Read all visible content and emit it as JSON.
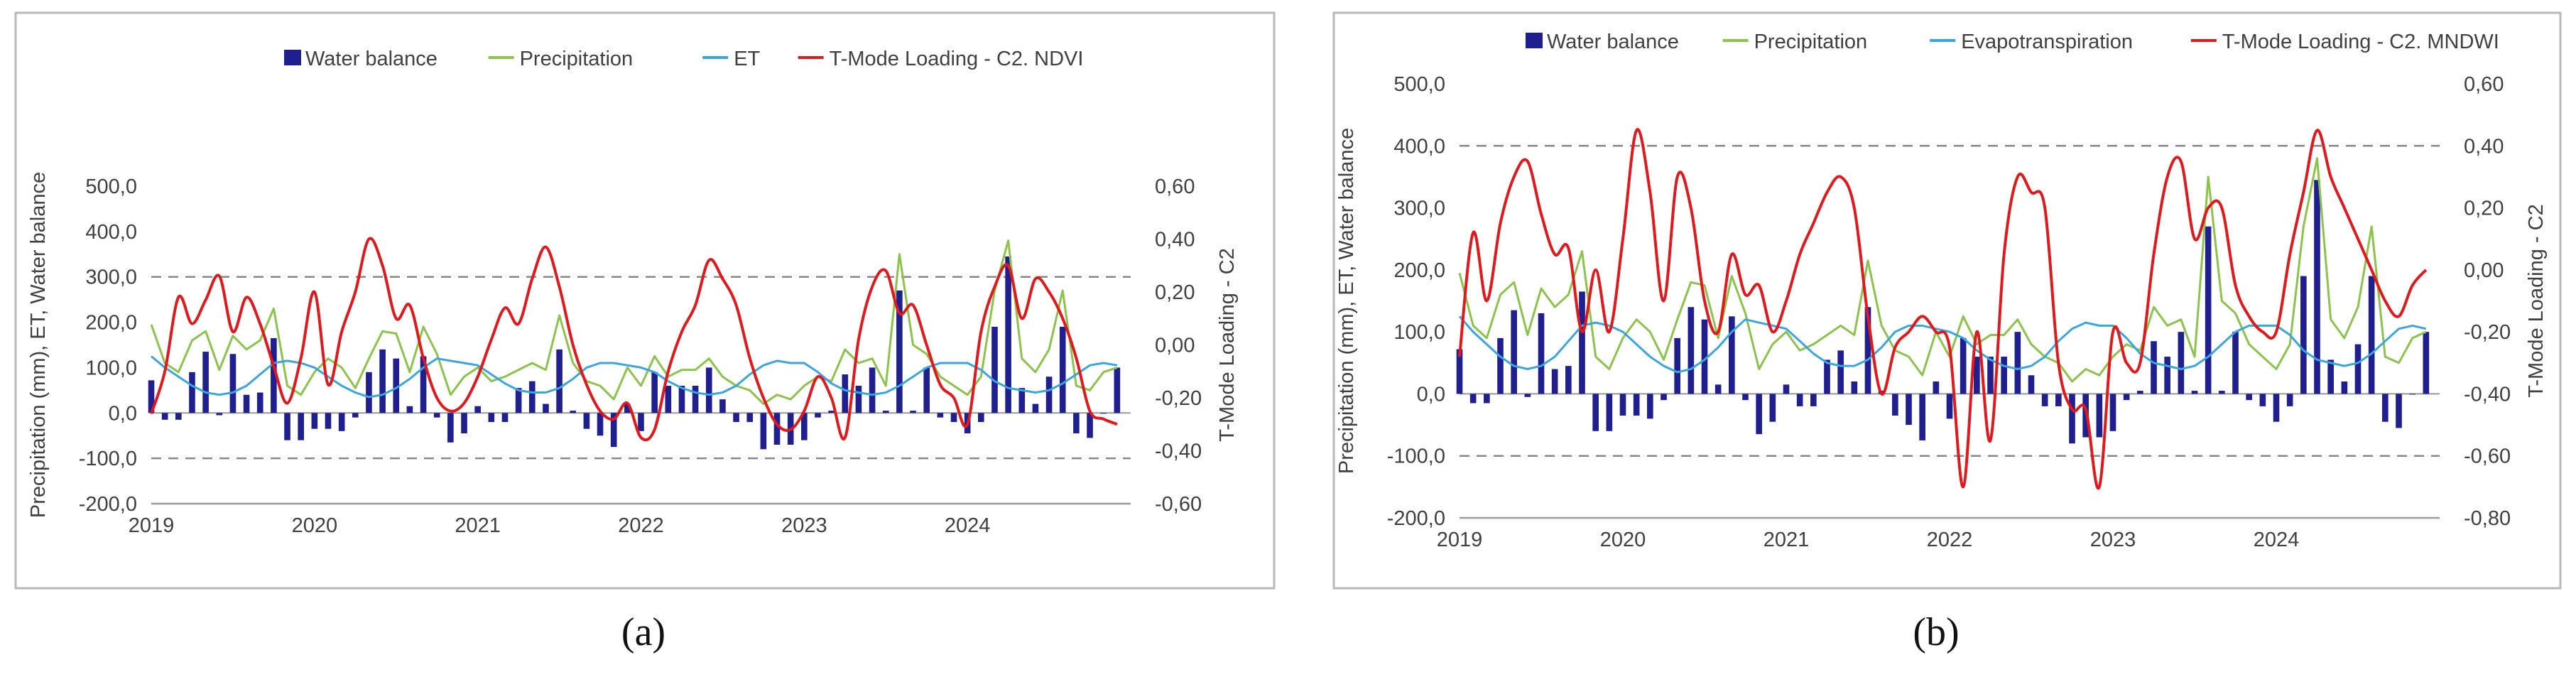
{
  "figure": {
    "caption_a": "(a)",
    "caption_b": "(b)"
  },
  "colors": {
    "water_balance": "#1f1f8f",
    "precipitation": "#8cc34a",
    "et": "#3aa6e0",
    "tmode": "#e0191d",
    "frame": "#b9b9b9",
    "axis_text": "#404040",
    "gridline": "#888888"
  },
  "chart_data": [
    {
      "type": "bar",
      "panel": "a",
      "legend": [
        "Water balance",
        "Precipitation",
        "ET",
        "T-Mode Loading - C2. NDVI"
      ],
      "ylabel": "Precipitation (mm), ET, Water balance",
      "y2label": "T-Mode Loading - C2",
      "ylim": [
        -200,
        500
      ],
      "y2lim": [
        -0.6,
        0.6
      ],
      "y_ticks": [
        "500,0",
        "400,0",
        "300,0",
        "200,0",
        "100,0",
        "0,0",
        "-100,0",
        "-200,0"
      ],
      "y2_ticks": [
        "0,60",
        "0,40",
        "0,20",
        "0,00",
        "-0,20",
        "-0,40",
        "-0,60"
      ],
      "xlim": [
        2019,
        2025
      ],
      "x_ticks": [
        "2019",
        "2020",
        "2021",
        "2022",
        "2023",
        "2024"
      ],
      "grid_y": [
        300,
        -100
      ],
      "x_months": [
        2019.0,
        2019.0833,
        2019.1667,
        2019.25,
        2019.3333,
        2019.4167,
        2019.5,
        2019.5833,
        2019.6667,
        2019.75,
        2019.8333,
        2019.9167,
        2020.0,
        2020.0833,
        2020.1667,
        2020.25,
        2020.3333,
        2020.4167,
        2020.5,
        2020.5833,
        2020.6667,
        2020.75,
        2020.8333,
        2020.9167,
        2021.0,
        2021.0833,
        2021.1667,
        2021.25,
        2021.3333,
        2021.4167,
        2021.5,
        2021.5833,
        2021.6667,
        2021.75,
        2021.8333,
        2021.9167,
        2022.0,
        2022.0833,
        2022.1667,
        2022.25,
        2022.3333,
        2022.4167,
        2022.5,
        2022.5833,
        2022.6667,
        2022.75,
        2022.8333,
        2022.9167,
        2023.0,
        2023.0833,
        2023.1667,
        2023.25,
        2023.3333,
        2023.4167,
        2023.5,
        2023.5833,
        2023.6667,
        2023.75,
        2023.8333,
        2023.9167,
        2024.0,
        2024.0833,
        2024.1667,
        2024.25,
        2024.3333,
        2024.4167,
        2024.5,
        2024.5833,
        2024.6667,
        2024.75,
        2024.8333,
        2024.9167
      ],
      "series": [
        {
          "name": "Water balance",
          "kind": "bar",
          "values": [
            72,
            -15,
            -15,
            90,
            135,
            -5,
            130,
            40,
            45,
            165,
            -60,
            -60,
            -35,
            -35,
            -40,
            -10,
            90,
            140,
            120,
            15,
            125,
            -10,
            -65,
            -45,
            15,
            -20,
            -20,
            55,
            70,
            20,
            140,
            5,
            -35,
            -50,
            -75,
            20,
            -40,
            90,
            60,
            60,
            60,
            100,
            30,
            -20,
            -20,
            -80,
            -70,
            -70,
            -60,
            -10,
            5,
            85,
            60,
            100,
            5,
            270,
            5,
            100,
            -10,
            -20,
            -45,
            -20,
            190,
            345,
            55,
            20,
            80,
            190,
            -45,
            -55,
            0,
            100
          ]
        },
        {
          "name": "Precipitation",
          "kind": "line",
          "values": [
            195,
            110,
            90,
            160,
            180,
            95,
            170,
            140,
            160,
            230,
            60,
            40,
            90,
            120,
            100,
            55,
            120,
            180,
            175,
            90,
            190,
            130,
            40,
            80,
            100,
            70,
            80,
            95,
            110,
            95,
            215,
            110,
            70,
            60,
            30,
            100,
            60,
            125,
            80,
            95,
            95,
            120,
            80,
            60,
            50,
            20,
            40,
            30,
            60,
            80,
            70,
            140,
            110,
            120,
            60,
            350,
            150,
            130,
            80,
            60,
            40,
            80,
            270,
            380,
            120,
            90,
            140,
            270,
            60,
            50,
            90,
            100
          ]
        },
        {
          "name": "ET",
          "kind": "line",
          "values": [
            125,
            100,
            80,
            60,
            45,
            40,
            45,
            60,
            85,
            110,
            115,
            110,
            100,
            80,
            60,
            45,
            35,
            40,
            55,
            75,
            100,
            120,
            115,
            110,
            105,
            85,
            65,
            50,
            45,
            45,
            55,
            75,
            100,
            110,
            110,
            105,
            100,
            90,
            70,
            55,
            45,
            40,
            45,
            60,
            85,
            105,
            115,
            110,
            110,
            90,
            65,
            50,
            45,
            40,
            45,
            60,
            80,
            100,
            110,
            110,
            110,
            95,
            70,
            55,
            50,
            45,
            50,
            65,
            85,
            105,
            110,
            105
          ]
        },
        {
          "name": "T-Mode Loading - C2. NDVI",
          "kind": "line",
          "axis": "right",
          "values": [
            -0.26,
            -0.1,
            0.18,
            0.08,
            0.17,
            0.26,
            0.05,
            0.18,
            0.08,
            -0.08,
            -0.22,
            -0.05,
            0.2,
            -0.15,
            0.05,
            0.2,
            0.4,
            0.3,
            0.1,
            0.15,
            -0.05,
            -0.2,
            -0.25,
            -0.22,
            -0.12,
            0.02,
            0.14,
            0.08,
            0.25,
            0.37,
            0.22,
            0.0,
            -0.15,
            -0.25,
            -0.28,
            -0.22,
            -0.35,
            -0.32,
            -0.1,
            0.05,
            0.15,
            0.32,
            0.25,
            0.15,
            -0.05,
            -0.2,
            -0.3,
            -0.32,
            -0.25,
            -0.12,
            -0.2,
            -0.35,
            0.02,
            0.22,
            0.28,
            0.12,
            0.15,
            0.0,
            -0.15,
            -0.2,
            -0.3,
            0.05,
            0.22,
            0.3,
            0.1,
            0.25,
            0.2,
            0.1,
            -0.05,
            -0.25,
            -0.28,
            -0.3
          ]
        }
      ]
    },
    {
      "type": "bar",
      "panel": "b",
      "legend": [
        "Water balance",
        "Precipitation",
        "Evapotranspiration",
        "T-Mode Loading - C2. MNDWI"
      ],
      "ylabel": "Precipitation (mm), ET, Water balance",
      "y2label": "T-Mode Loading - C2",
      "ylim": [
        -200,
        500
      ],
      "y2lim": [
        -0.8,
        0.6
      ],
      "y_ticks": [
        "500,0",
        "400,0",
        "300,0",
        "200,0",
        "100,0",
        "0,0",
        "-100,0",
        "-200,0"
      ],
      "y2_ticks": [
        "0,60",
        "0,40",
        "0,20",
        "0,00",
        "-0,20",
        "-0,40",
        "-0,60",
        "-0,80"
      ],
      "xlim": [
        2019,
        2025
      ],
      "x_ticks": [
        "2019",
        "2020",
        "2021",
        "2022",
        "2023",
        "2024"
      ],
      "grid_y": [
        400,
        -100
      ],
      "x_months": [
        2019.0,
        2019.0833,
        2019.1667,
        2019.25,
        2019.3333,
        2019.4167,
        2019.5,
        2019.5833,
        2019.6667,
        2019.75,
        2019.8333,
        2019.9167,
        2020.0,
        2020.0833,
        2020.1667,
        2020.25,
        2020.3333,
        2020.4167,
        2020.5,
        2020.5833,
        2020.6667,
        2020.75,
        2020.8333,
        2020.9167,
        2021.0,
        2021.0833,
        2021.1667,
        2021.25,
        2021.3333,
        2021.4167,
        2021.5,
        2021.5833,
        2021.6667,
        2021.75,
        2021.8333,
        2021.9167,
        2022.0,
        2022.0833,
        2022.1667,
        2022.25,
        2022.3333,
        2022.4167,
        2022.5,
        2022.5833,
        2022.6667,
        2022.75,
        2022.8333,
        2022.9167,
        2023.0,
        2023.0833,
        2023.1667,
        2023.25,
        2023.3333,
        2023.4167,
        2023.5,
        2023.5833,
        2023.6667,
        2023.75,
        2023.8333,
        2023.9167,
        2024.0,
        2024.0833,
        2024.1667,
        2024.25,
        2024.3333,
        2024.4167,
        2024.5,
        2024.5833,
        2024.6667,
        2024.75,
        2024.8333,
        2024.9167
      ],
      "series": [
        {
          "name": "Water balance",
          "kind": "bar",
          "values": [
            72,
            -15,
            -15,
            90,
            135,
            -5,
            130,
            40,
            45,
            165,
            -60,
            -60,
            -35,
            -35,
            -40,
            -10,
            90,
            140,
            120,
            15,
            125,
            -10,
            -65,
            -45,
            15,
            -20,
            -20,
            55,
            70,
            20,
            140,
            5,
            -35,
            -50,
            -75,
            20,
            -40,
            90,
            60,
            60,
            60,
            100,
            30,
            -20,
            -20,
            -80,
            -70,
            -70,
            -60,
            -10,
            5,
            85,
            60,
            100,
            5,
            270,
            5,
            100,
            -10,
            -20,
            -45,
            -20,
            190,
            345,
            55,
            20,
            80,
            190,
            -45,
            -55,
            0,
            100
          ]
        },
        {
          "name": "Precipitation",
          "kind": "line",
          "values": [
            195,
            110,
            90,
            160,
            180,
            95,
            170,
            140,
            160,
            230,
            60,
            40,
            90,
            120,
            100,
            55,
            120,
            180,
            175,
            90,
            190,
            130,
            40,
            80,
            100,
            70,
            80,
            95,
            110,
            95,
            215,
            110,
            70,
            60,
            30,
            100,
            60,
            125,
            80,
            95,
            95,
            120,
            80,
            60,
            50,
            20,
            40,
            30,
            60,
            80,
            70,
            140,
            110,
            120,
            60,
            350,
            150,
            130,
            80,
            60,
            40,
            80,
            270,
            380,
            120,
            90,
            140,
            270,
            60,
            50,
            90,
            100
          ]
        },
        {
          "name": "Evapotranspiration",
          "kind": "line",
          "values": [
            125,
            100,
            80,
            60,
            45,
            40,
            45,
            60,
            85,
            110,
            115,
            110,
            100,
            80,
            60,
            45,
            35,
            40,
            55,
            75,
            100,
            120,
            115,
            110,
            105,
            85,
            65,
            50,
            45,
            45,
            55,
            75,
            100,
            110,
            110,
            105,
            100,
            90,
            70,
            55,
            45,
            40,
            45,
            60,
            85,
            105,
            115,
            110,
            110,
            90,
            65,
            50,
            45,
            40,
            45,
            60,
            80,
            100,
            110,
            110,
            110,
            95,
            70,
            55,
            50,
            45,
            50,
            65,
            85,
            105,
            110,
            105
          ]
        },
        {
          "name": "T-Mode Loading - C2. MNDWI",
          "kind": "line",
          "axis": "right",
          "values": [
            -0.28,
            0.12,
            -0.1,
            0.15,
            0.3,
            0.35,
            0.18,
            0.05,
            0.07,
            -0.2,
            0.0,
            -0.2,
            0.1,
            0.45,
            0.25,
            -0.1,
            0.3,
            0.2,
            -0.1,
            -0.2,
            0.05,
            -0.08,
            -0.05,
            -0.2,
            -0.1,
            0.05,
            0.15,
            0.25,
            0.3,
            0.2,
            -0.15,
            -0.4,
            -0.25,
            -0.2,
            -0.15,
            -0.2,
            -0.25,
            -0.7,
            -0.2,
            -0.55,
            0.05,
            0.3,
            0.25,
            0.2,
            -0.3,
            -0.45,
            -0.45,
            -0.7,
            -0.2,
            -0.3,
            -0.3,
            0.05,
            0.3,
            0.35,
            0.1,
            0.2,
            0.2,
            -0.05,
            -0.15,
            -0.2,
            -0.2,
            0.05,
            0.25,
            0.45,
            0.3,
            0.2,
            0.1,
            0.0,
            -0.1,
            -0.15,
            -0.05,
            0.0
          ]
        }
      ]
    }
  ]
}
